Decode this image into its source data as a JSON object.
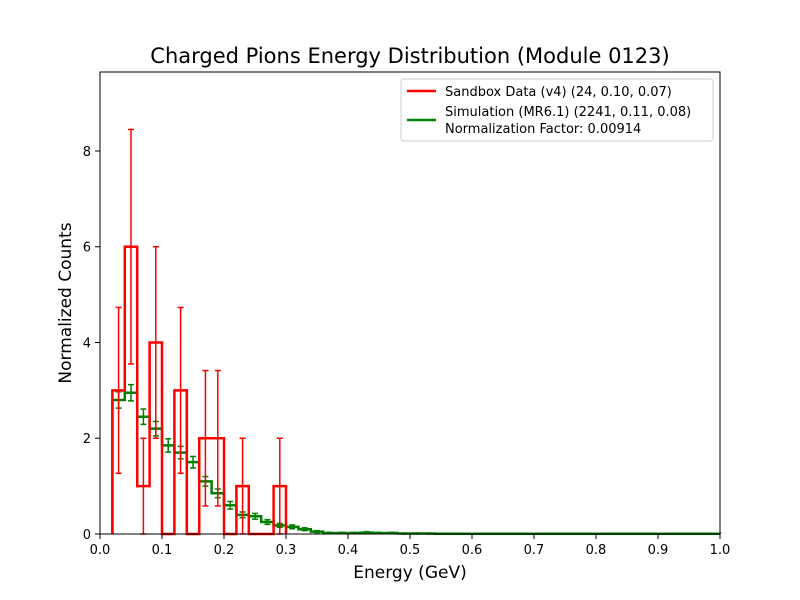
{
  "chart_data": {
    "type": "histogram",
    "title": "Charged Pions Energy Distribution (Module 0123)",
    "xlabel": "Energy (GeV)",
    "ylabel": "Normalized Counts",
    "xlim": [
      0.0,
      1.0
    ],
    "ylim": [
      0,
      9.65
    ],
    "xticks": [
      "0.0",
      "0.1",
      "0.2",
      "0.3",
      "0.4",
      "0.5",
      "0.6",
      "0.7",
      "0.8",
      "0.9",
      "1.0"
    ],
    "yticks": [
      "0",
      "2",
      "4",
      "6",
      "8"
    ],
    "legend_position": "top-right",
    "legend_note": "Normalization Factor: 0.00914",
    "grid": false,
    "series": [
      {
        "name": "Sandbox Data (v4) (24, 0.10, 0.07)",
        "color": "#ff0000",
        "bin_edges": [
          0.02,
          0.04,
          0.06,
          0.08,
          0.1,
          0.12,
          0.14,
          0.16,
          0.18,
          0.2,
          0.22,
          0.24,
          0.26,
          0.28,
          0.3
        ],
        "values": [
          3,
          6,
          1,
          4,
          0,
          3,
          0,
          2,
          2,
          0,
          1,
          0,
          0,
          1
        ],
        "errors": [
          1.732,
          2.449,
          1.0,
          2.0,
          0,
          1.732,
          0,
          1.414,
          1.414,
          0,
          1.0,
          0,
          0,
          1.0
        ]
      },
      {
        "name": "Simulation (MR6.1) (2241, 0.11, 0.08)",
        "color": "#008000",
        "bin_edges": [
          0.02,
          0.04,
          0.06,
          0.08,
          0.1,
          0.12,
          0.14,
          0.16,
          0.18,
          0.2,
          0.22,
          0.24,
          0.26,
          0.28,
          0.3,
          0.32,
          0.34,
          0.36,
          0.38,
          0.4,
          0.42,
          0.44,
          0.46,
          0.48,
          0.5,
          0.52,
          0.54,
          0.56,
          0.58,
          0.6,
          0.62,
          0.64,
          0.66,
          0.68,
          0.7,
          0.72,
          0.74,
          0.76,
          0.78,
          0.8,
          0.82,
          0.84,
          0.86,
          0.88,
          0.9,
          0.92,
          0.94,
          0.96,
          0.98,
          1.0
        ],
        "values": [
          2.8,
          2.95,
          2.45,
          2.2,
          1.85,
          1.7,
          1.5,
          1.1,
          0.85,
          0.6,
          0.4,
          0.37,
          0.25,
          0.18,
          0.15,
          0.1,
          0.05,
          0.02,
          0.02,
          0.02,
          0.03,
          0.02,
          0.02,
          0.01,
          0.01,
          0.01,
          0.005,
          0.005,
          0.005,
          0.005,
          0.005,
          0.005,
          0.005,
          0.005,
          0.005,
          0.005,
          0.005,
          0.005,
          0.005,
          0.005,
          0.005,
          0.005,
          0.005,
          0.005,
          0.005,
          0.005,
          0.005,
          0.005,
          0.005
        ],
        "errors": [
          0.17,
          0.17,
          0.16,
          0.15,
          0.14,
          0.13,
          0.12,
          0.1,
          0.09,
          0.08,
          0.06,
          0.06,
          0.05,
          0.04,
          0.04,
          0.03,
          0.02,
          0.015,
          0.015,
          0.015,
          0.02,
          0.015,
          0.015,
          0.01,
          0.01,
          0.01,
          0.007,
          0.007,
          0.007,
          0.007,
          0.007,
          0.007,
          0.007,
          0.007,
          0.007,
          0.007,
          0.007,
          0.007,
          0.007,
          0.007,
          0.007,
          0.007,
          0.007,
          0.007,
          0.007,
          0.007,
          0.007,
          0.007,
          0.007
        ]
      }
    ]
  }
}
